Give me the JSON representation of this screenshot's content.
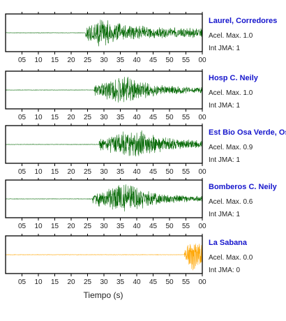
{
  "chart_data": {
    "type": "line",
    "xlabel": "Tiempo (s)",
    "x_tick_labels": [
      "05",
      "10",
      "15",
      "20",
      "25",
      "30",
      "35",
      "40",
      "45",
      "50",
      "55",
      "00"
    ],
    "xlim": [
      0,
      60
    ],
    "grid": false,
    "series": [
      {
        "name": "Laurel, Corredores",
        "acel_label": "Acel. Max. 1.0",
        "int_label": "Int JMA: 1",
        "color": "#006600",
        "arrival_s": 24.3,
        "peak_s": 28.5,
        "end_amplitude": 0.3
      },
      {
        "name": "Hosp C. Neily",
        "acel_label": "Acel. Max. 1.0",
        "int_label": "Int JMA: 1",
        "color": "#006600",
        "arrival_s": 27.0,
        "peak_s": 36.0,
        "end_amplitude": 0.15
      },
      {
        "name": "Est Bio Osa Verde, Osa",
        "acel_label": "Acel. Max. 0.9",
        "int_label": "Int JMA: 1",
        "color": "#006600",
        "arrival_s": 28.5,
        "peak_s": 40.0,
        "end_amplitude": 0.2
      },
      {
        "name": "Bomberos C. Neily",
        "acel_label": "Acel. Max. 0.6",
        "int_label": "Int JMA: 1",
        "color": "#006600",
        "arrival_s": 26.5,
        "peak_s": 37.0,
        "end_amplitude": 0.15
      },
      {
        "name": "La Sabana",
        "acel_label": "Acel. Max. 0.0",
        "int_label": "Int JMA: 0",
        "color": "#ffa500",
        "arrival_s": 54.5,
        "peak_s": 56.5,
        "end_amplitude": 0.5
      }
    ]
  }
}
